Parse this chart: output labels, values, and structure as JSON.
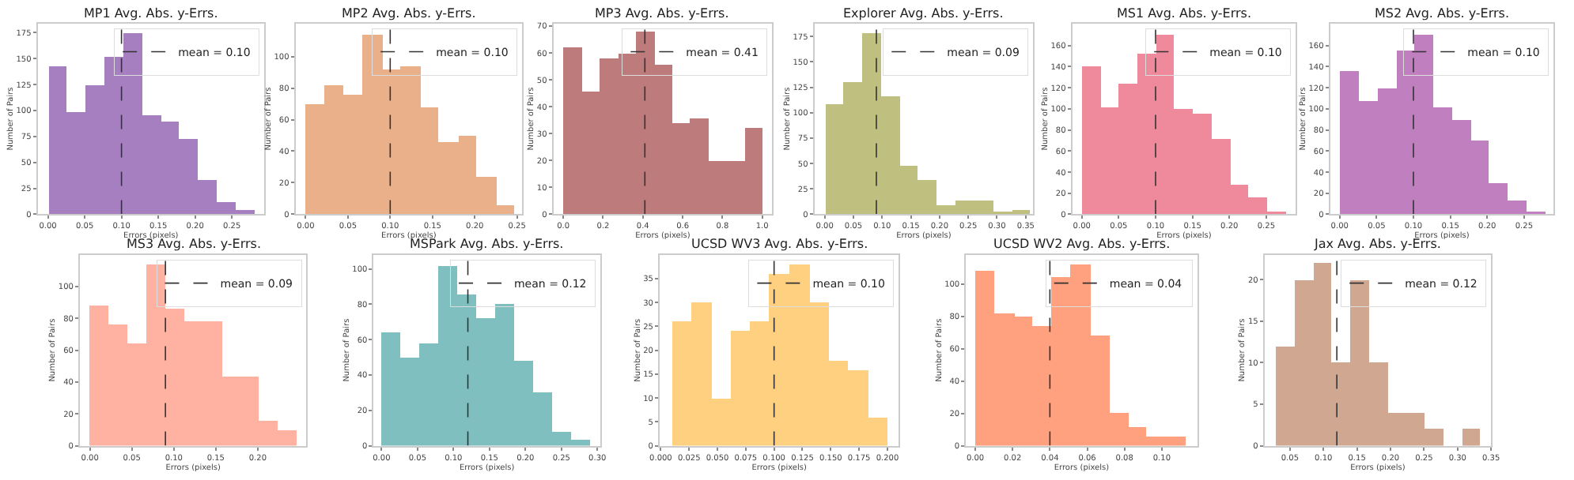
{
  "chart_data": [
    {
      "type": "histogram",
      "title": "MP1 Avg. Abs. y-Errs.",
      "xlabel": "Errors (pixels)",
      "ylabel": "Number of Pairs",
      "color": "#a57fc0",
      "legend": "top right",
      "bins": [
        0,
        0.025,
        0.051,
        0.076,
        0.102,
        0.127,
        0.153,
        0.178,
        0.204,
        0.229,
        0.255,
        0.28
      ],
      "values": [
        143,
        99,
        125,
        152,
        175,
        96,
        90,
        73,
        33,
        12,
        4
      ],
      "xlim": [
        -0.014,
        0.294
      ],
      "ylim": [
        0,
        184
      ],
      "xticks": [
        {
          "value": 0,
          "label": "0.00"
        },
        {
          "value": 0.05,
          "label": "0.05"
        },
        {
          "value": 0.1,
          "label": "0.10"
        },
        {
          "value": 0.15,
          "label": "0.15"
        },
        {
          "value": 0.2,
          "label": "0.20"
        },
        {
          "value": 0.25,
          "label": "0.25"
        }
      ],
      "yticks": [
        0,
        25,
        50,
        75,
        100,
        125,
        150,
        175
      ],
      "ref_lines": [
        {
          "axis": "x",
          "value": 0.1,
          "label": "mean = 0.10",
          "color": "#333333",
          "line_style": "dashed"
        }
      ]
    },
    {
      "type": "histogram",
      "title": "MP2 Avg. Abs. y-Errs.",
      "xlabel": "Errors (pixels)",
      "ylabel": "Number of Pairs",
      "color": "#e9b08a",
      "legend": "top right",
      "bins": [
        0,
        0.022,
        0.045,
        0.067,
        0.09,
        0.112,
        0.135,
        0.157,
        0.18,
        0.202,
        0.225,
        0.247
      ],
      "values": [
        70,
        82,
        76,
        114,
        92,
        94,
        68,
        46,
        50,
        24,
        6
      ],
      "xlim": [
        -0.012,
        0.256
      ],
      "ylim": [
        0,
        121
      ],
      "xticks": [
        {
          "value": 0,
          "label": "0.00"
        },
        {
          "value": 0.05,
          "label": "0.05"
        },
        {
          "value": 0.1,
          "label": "0.10"
        },
        {
          "value": 0.15,
          "label": "0.15"
        },
        {
          "value": 0.2,
          "label": "0.20"
        },
        {
          "value": 0.25,
          "label": "0.25"
        }
      ],
      "yticks": [
        0,
        20,
        40,
        60,
        80,
        100
      ],
      "ref_lines": [
        {
          "axis": "x",
          "value": 0.1,
          "label": "mean = 0.10",
          "color": "#333333",
          "line_style": "dashed"
        }
      ]
    },
    {
      "type": "histogram",
      "title": "MP3 Avg. Abs. y-Errs.",
      "xlabel": "Errors (pixels)",
      "ylabel": "Number of Pairs",
      "color": "#bd7b7b",
      "legend": "top right",
      "bins": [
        0,
        0.091,
        0.182,
        0.273,
        0.364,
        0.455,
        0.545,
        0.636,
        0.727,
        0.818,
        0.909,
        1.0
      ],
      "values": [
        62,
        46,
        58,
        60,
        68,
        56,
        34,
        36,
        20,
        20,
        32
      ],
      "xlim": [
        -0.05,
        1.05
      ],
      "ylim": [
        0,
        71
      ],
      "xticks": [
        {
          "value": 0,
          "label": "0.0"
        },
        {
          "value": 0.2,
          "label": "0.2"
        },
        {
          "value": 0.4,
          "label": "0.4"
        },
        {
          "value": 0.6,
          "label": "0.6"
        },
        {
          "value": 0.8,
          "label": "0.8"
        },
        {
          "value": 1,
          "label": "1.0"
        }
      ],
      "yticks": [
        0,
        10,
        20,
        30,
        40,
        50,
        60,
        70
      ],
      "ref_lines": [
        {
          "axis": "x",
          "value": 0.41,
          "label": "mean = 0.41",
          "color": "#333333",
          "line_style": "dashed"
        }
      ]
    },
    {
      "type": "histogram",
      "title": "Explorer Avg. Abs. y-Errs.",
      "xlabel": "Errors (pixels)",
      "ylabel": "Number of Pairs",
      "color": "#bfbf7f",
      "legend": "top right",
      "bins": [
        0,
        0.032,
        0.065,
        0.097,
        0.13,
        0.162,
        0.195,
        0.227,
        0.26,
        0.292,
        0.325,
        0.357
      ],
      "values": [
        108,
        130,
        178,
        116,
        48,
        34,
        10,
        14,
        14,
        2,
        4
      ],
      "xlim": [
        -0.018,
        0.363
      ],
      "ylim": [
        0,
        188
      ],
      "xticks": [
        {
          "value": 0,
          "label": "0.00"
        },
        {
          "value": 0.05,
          "label": "0.05"
        },
        {
          "value": 0.1,
          "label": "0.10"
        },
        {
          "value": 0.15,
          "label": "0.15"
        },
        {
          "value": 0.2,
          "label": "0.20"
        },
        {
          "value": 0.25,
          "label": "0.25"
        },
        {
          "value": 0.3,
          "label": "0.30"
        },
        {
          "value": 0.35,
          "label": "0.35"
        }
      ],
      "yticks": [
        0,
        25,
        50,
        75,
        100,
        125,
        150,
        175
      ],
      "ref_lines": [
        {
          "axis": "x",
          "value": 0.09,
          "label": "mean = 0.09",
          "color": "#333333",
          "line_style": "dashed"
        }
      ]
    },
    {
      "type": "histogram",
      "title": "MS1 Avg. Abs. y-Errs.",
      "xlabel": "Errors (pixels)",
      "ylabel": "Number of Pairs",
      "color": "#ee8a9c",
      "legend": "top right",
      "bins": [
        0,
        0.025,
        0.05,
        0.075,
        0.1,
        0.125,
        0.151,
        0.176,
        0.201,
        0.226,
        0.251,
        0.276
      ],
      "values": [
        140,
        102,
        124,
        152,
        170,
        100,
        96,
        72,
        28,
        16,
        2
      ],
      "xlim": [
        -0.013,
        0.29
      ],
      "ylim": [
        0,
        181
      ],
      "xticks": [
        {
          "value": 0,
          "label": "0.00"
        },
        {
          "value": 0.05,
          "label": "0.05"
        },
        {
          "value": 0.1,
          "label": "0.10"
        },
        {
          "value": 0.15,
          "label": "0.15"
        },
        {
          "value": 0.2,
          "label": "0.20"
        },
        {
          "value": 0.25,
          "label": "0.25"
        }
      ],
      "yticks": [
        0,
        20,
        40,
        60,
        80,
        100,
        120,
        140,
        160
      ],
      "ref_lines": [
        {
          "axis": "x",
          "value": 0.1,
          "label": "mean = 0.10",
          "color": "#333333",
          "line_style": "dashed"
        }
      ]
    },
    {
      "type": "histogram",
      "title": "MS2 Avg. Abs. y-Errs.",
      "xlabel": "Errors (pixels)",
      "ylabel": "Number of Pairs",
      "color": "#c07fbf",
      "legend": "top right",
      "bins": [
        0,
        0.025,
        0.051,
        0.076,
        0.101,
        0.126,
        0.152,
        0.177,
        0.202,
        0.227,
        0.253,
        0.278
      ],
      "values": [
        136,
        108,
        120,
        156,
        170,
        102,
        90,
        70,
        30,
        14,
        2
      ],
      "xlim": [
        -0.013,
        0.29
      ],
      "ylim": [
        0,
        181
      ],
      "xticks": [
        {
          "value": 0,
          "label": "0.00"
        },
        {
          "value": 0.05,
          "label": "0.05"
        },
        {
          "value": 0.1,
          "label": "0.10"
        },
        {
          "value": 0.15,
          "label": "0.15"
        },
        {
          "value": 0.2,
          "label": "0.20"
        },
        {
          "value": 0.25,
          "label": "0.25"
        }
      ],
      "yticks": [
        0,
        20,
        40,
        60,
        80,
        100,
        120,
        140,
        160
      ],
      "ref_lines": [
        {
          "axis": "x",
          "value": 0.1,
          "label": "mean = 0.10",
          "color": "#333333",
          "line_style": "dashed"
        }
      ]
    },
    {
      "type": "histogram",
      "title": "MS3 Avg. Abs. y-Errs.",
      "xlabel": "Errors (pixels)",
      "ylabel": "Number of Pairs",
      "color": "#ffb1a2",
      "legend": "top right",
      "bins": [
        0,
        0.022,
        0.045,
        0.067,
        0.089,
        0.112,
        0.134,
        0.157,
        0.179,
        0.201,
        0.224,
        0.246
      ],
      "values": [
        88,
        76,
        64,
        114,
        86,
        78,
        78,
        44,
        44,
        16,
        10
      ],
      "xlim": [
        -0.012,
        0.258
      ],
      "ylim": [
        0,
        120
      ],
      "xticks": [
        {
          "value": 0,
          "label": "0.00"
        },
        {
          "value": 0.05,
          "label": "0.05"
        },
        {
          "value": 0.1,
          "label": "0.10"
        },
        {
          "value": 0.15,
          "label": "0.15"
        },
        {
          "value": 0.2,
          "label": "0.20"
        }
      ],
      "yticks": [
        0,
        20,
        40,
        60,
        80,
        100
      ],
      "ref_lines": [
        {
          "axis": "x",
          "value": 0.09,
          "label": "mean = 0.09",
          "color": "#333333",
          "line_style": "dashed"
        }
      ]
    },
    {
      "type": "histogram",
      "title": "MSPark Avg. Abs. y-Errs.",
      "xlabel": "Errors (pixels)",
      "ylabel": "Number of Pairs",
      "color": "#7fbfbf",
      "legend": "top right",
      "bins": [
        0,
        0.026,
        0.053,
        0.079,
        0.105,
        0.132,
        0.158,
        0.185,
        0.211,
        0.237,
        0.264,
        0.29
      ],
      "values": [
        64,
        50,
        58,
        102,
        86,
        72,
        80,
        48,
        30,
        8,
        4
      ],
      "xlim": [
        -0.011,
        0.304
      ],
      "ylim": [
        0,
        108
      ],
      "xticks": [
        {
          "value": 0,
          "label": "0.00"
        },
        {
          "value": 0.05,
          "label": "0.05"
        },
        {
          "value": 0.1,
          "label": "0.10"
        },
        {
          "value": 0.15,
          "label": "0.15"
        },
        {
          "value": 0.2,
          "label": "0.20"
        },
        {
          "value": 0.25,
          "label": "0.25"
        },
        {
          "value": 0.3,
          "label": "0.30"
        }
      ],
      "yticks": [
        0,
        20,
        40,
        60,
        80,
        100
      ],
      "ref_lines": [
        {
          "axis": "x",
          "value": 0.12,
          "label": "mean = 0.12",
          "color": "#333333",
          "line_style": "dashed"
        }
      ]
    },
    {
      "type": "histogram",
      "title": "UCSD WV3 Avg. Abs. y-Errs.",
      "xlabel": "Errors (pixels)",
      "ylabel": "Number of Pairs",
      "color": "#ffd07f",
      "legend": "top right",
      "bins": [
        0.01,
        0.027,
        0.045,
        0.062,
        0.079,
        0.096,
        0.114,
        0.131,
        0.148,
        0.165,
        0.183,
        0.2
      ],
      "values": [
        26,
        30,
        10,
        24,
        26,
        36,
        38,
        30,
        18,
        16,
        6
      ],
      "xlim": [
        -0.001,
        0.21
      ],
      "ylim": [
        0,
        40
      ],
      "xticks": [
        {
          "value": 0,
          "label": "0.000"
        },
        {
          "value": 0.025,
          "label": "0.025"
        },
        {
          "value": 0.05,
          "label": "0.050"
        },
        {
          "value": 0.075,
          "label": "0.075"
        },
        {
          "value": 0.1,
          "label": "0.100"
        },
        {
          "value": 0.125,
          "label": "0.125"
        },
        {
          "value": 0.15,
          "label": "0.150"
        },
        {
          "value": 0.175,
          "label": "0.175"
        },
        {
          "value": 0.2,
          "label": "0.200"
        }
      ],
      "yticks": [
        0,
        5,
        10,
        15,
        20,
        25,
        30,
        35
      ],
      "ref_lines": [
        {
          "axis": "x",
          "value": 0.1,
          "label": "mean = 0.10",
          "color": "#333333",
          "line_style": "dashed"
        }
      ]
    },
    {
      "type": "histogram",
      "title": "UCSD WV2 Avg. Abs. y-Errs.",
      "xlabel": "Errors (pixels)",
      "ylabel": "Number of Pairs",
      "color": "#ffa07f",
      "legend": "top right",
      "bins": [
        0,
        0.01,
        0.021,
        0.031,
        0.041,
        0.051,
        0.062,
        0.072,
        0.082,
        0.092,
        0.103,
        0.113
      ],
      "values": [
        108,
        82,
        80,
        74,
        104,
        112,
        68,
        20,
        12,
        6,
        6
      ],
      "xlim": [
        -0.005,
        0.119
      ],
      "ylim": [
        0,
        118
      ],
      "xticks": [
        {
          "value": 0,
          "label": "0.00"
        },
        {
          "value": 0.02,
          "label": "0.02"
        },
        {
          "value": 0.04,
          "label": "0.04"
        },
        {
          "value": 0.06,
          "label": "0.06"
        },
        {
          "value": 0.08,
          "label": "0.08"
        },
        {
          "value": 0.1,
          "label": "0.10"
        }
      ],
      "yticks": [
        0,
        20,
        40,
        60,
        80,
        100
      ],
      "ref_lines": [
        {
          "axis": "x",
          "value": 0.04,
          "label": "mean = 0.04",
          "color": "#333333",
          "line_style": "dashed"
        }
      ]
    },
    {
      "type": "histogram",
      "title": "Jax Avg. Abs. y-Errs.",
      "xlabel": "Errors (pixels)",
      "ylabel": "Number of Pairs",
      "color": "#d0a892",
      "legend": "top right",
      "bins": [
        0.028,
        0.056,
        0.084,
        0.111,
        0.139,
        0.167,
        0.195,
        0.223,
        0.251,
        0.278,
        0.306,
        0.334
      ],
      "values": [
        12,
        20,
        22,
        10,
        20,
        10,
        4,
        4,
        2,
        0,
        2
      ],
      "xlim": [
        0.012,
        0.35
      ],
      "ylim": [
        0,
        23
      ],
      "xticks": [
        {
          "value": 0.05,
          "label": "0.05"
        },
        {
          "value": 0.1,
          "label": "0.10"
        },
        {
          "value": 0.15,
          "label": "0.15"
        },
        {
          "value": 0.2,
          "label": "0.20"
        },
        {
          "value": 0.25,
          "label": "0.25"
        },
        {
          "value": 0.3,
          "label": "0.30"
        },
        {
          "value": 0.35,
          "label": "0.35"
        }
      ],
      "yticks": [
        0,
        5,
        10,
        15,
        20
      ],
      "ref_lines": [
        {
          "axis": "x",
          "value": 0.12,
          "label": "mean = 0.12",
          "color": "#333333",
          "line_style": "dashed"
        }
      ]
    }
  ]
}
